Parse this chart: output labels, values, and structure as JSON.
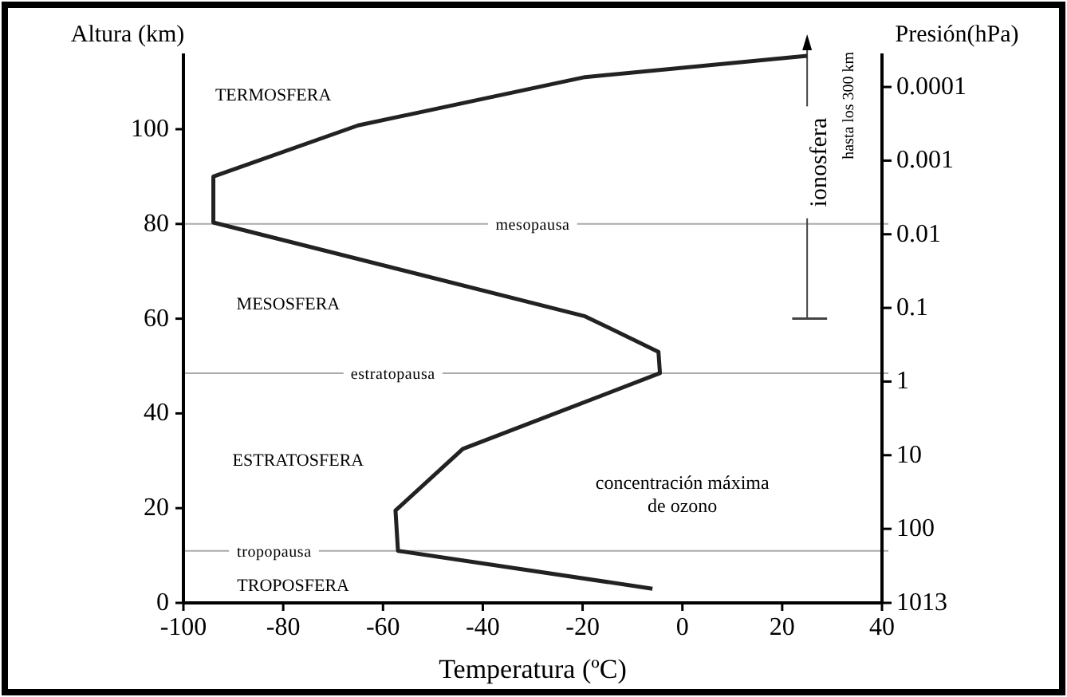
{
  "chart_data": {
    "type": "line",
    "xlabel": "Temperatura (ºC)",
    "ylabel": "Altura (km)",
    "y2label": "Presión(hPa)",
    "x": [
      -6,
      -57,
      -57.5,
      -44,
      -4.5,
      -4.8,
      -19.5,
      -94,
      -94,
      -65,
      -19.5,
      25
    ],
    "series": [
      {
        "color": "#222222",
        "values": [
          3,
          11,
          19.5,
          32.5,
          48.5,
          53,
          60.5,
          80.3,
          90,
          100.8,
          111,
          115.5
        ]
      }
    ],
    "xlim": [
      -100,
      40
    ],
    "xticks": [
      -100,
      -80,
      -60,
      -40,
      -20,
      0,
      20,
      40
    ],
    "ylim": [
      0,
      116
    ],
    "yticks": [
      0,
      20,
      40,
      60,
      80,
      100
    ],
    "y2lim": [
      1013,
      3.5e-05
    ],
    "log": "y2",
    "y2ticks": [
      {
        "value": 1013,
        "label": "1013"
      },
      100,
      10,
      1,
      0.1,
      0.01,
      0.001,
      0.0001
    ],
    "ref_lines": [
      {
        "axis": "y",
        "value": 80,
        "label": "mesopausa",
        "color": "#aaaaaa"
      },
      {
        "axis": "y",
        "value": 48.5,
        "label": "estratopausa",
        "color": "#aaaaaa"
      },
      {
        "axis": "y",
        "value": 11,
        "label": "tropopausa",
        "color": "#aaaaaa"
      }
    ],
    "annotations": [
      "TERMOSFERA",
      "MESOSFERA",
      "ESTRATOSFERA",
      "TROPOSFERA",
      "concentración máxima",
      "de ozono",
      "ionosfera",
      "hasta los 300 km"
    ],
    "grid": false,
    "marker": "none",
    "line_style": "solid"
  }
}
